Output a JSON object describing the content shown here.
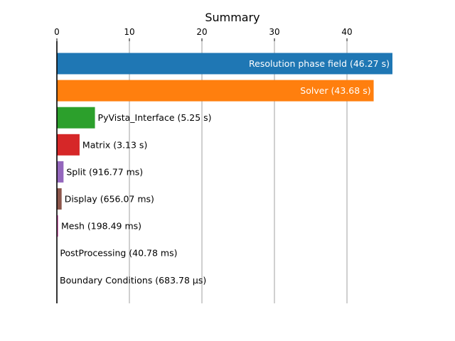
{
  "chart_data": {
    "type": "bar",
    "orientation": "horizontal",
    "title": "Summary",
    "xlabel": "",
    "ylabel": "",
    "xlim": [
      0,
      46.27
    ],
    "xticks": [
      0,
      10,
      20,
      30,
      40
    ],
    "x_axis_position": "top",
    "grid": "vertical",
    "categories": [
      "Resolution phase field",
      "Solver",
      "PyVista_Interface",
      "Matrix",
      "Split",
      "Display",
      "Mesh",
      "PostProcessing",
      "Boundary Conditions"
    ],
    "values": [
      46.27,
      43.68,
      5.25,
      3.13,
      0.91677,
      0.65607,
      0.19849,
      0.04078,
      0.00068378
    ],
    "labels": [
      "Resolution phase field (46.27 s)",
      "Solver (43.68 s)",
      "PyVista_Interface (5.25 s)",
      "Matrix (3.13 s)",
      "Split (916.77 ms)",
      "Display (656.07 ms)",
      "Mesh (198.49 ms)",
      "PostProcessing (40.78 ms)",
      "Boundary Conditions (683.78 µs)"
    ],
    "label_position": [
      "inside",
      "inside",
      "outside",
      "outside",
      "outside",
      "outside",
      "outside",
      "outside",
      "outside"
    ],
    "colors": [
      "#1f77b4",
      "#ff7f0e",
      "#2ca02c",
      "#d62728",
      "#9467bd",
      "#8c564b",
      "#e377c2",
      "#7f7f7f",
      "#bcbd22"
    ]
  }
}
